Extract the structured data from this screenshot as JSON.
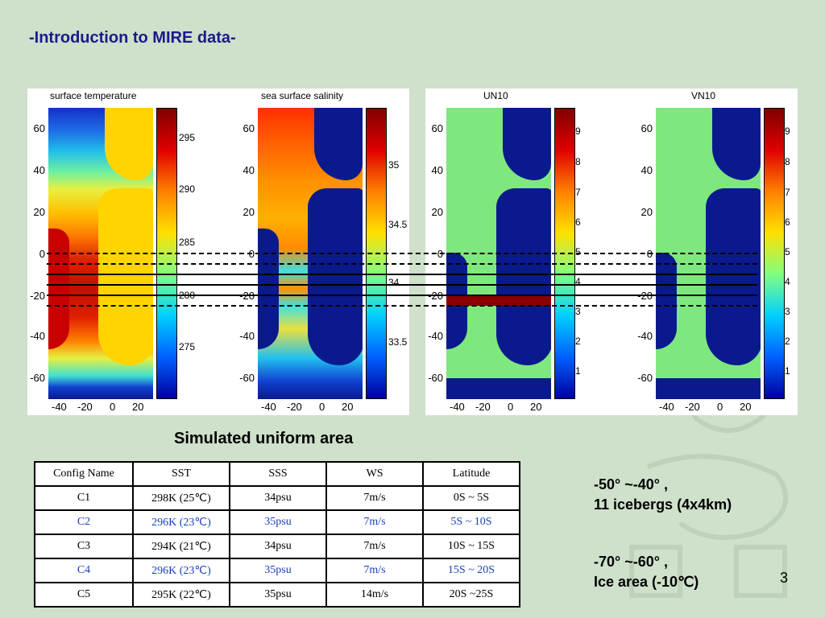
{
  "slide": {
    "title": "-Introduction to MIRE data-",
    "caption": "Simulated uniform area",
    "page_number": "3"
  },
  "panels": [
    {
      "title": "surface temperature",
      "cbar_ticks": [
        "295",
        "290",
        "285",
        "280",
        "275"
      ]
    },
    {
      "title": "sea surface salinity",
      "cbar_ticks": [
        "35",
        "34.5",
        "34",
        "33.5"
      ]
    },
    {
      "title": "UN10",
      "cbar_ticks": [
        "9",
        "8",
        "7",
        "6",
        "5",
        "4",
        "3",
        "2",
        "1"
      ]
    },
    {
      "title": "VN10",
      "cbar_ticks": [
        "9",
        "8",
        "7",
        "6",
        "5",
        "4",
        "3",
        "2",
        "1"
      ]
    }
  ],
  "lat_ticks": [
    "60",
    "40",
    "20",
    "0",
    "-20",
    "-40",
    "-60"
  ],
  "lon_ticks": [
    "-40",
    "-20",
    "0",
    "20"
  ],
  "table": {
    "headers": [
      "Config Name",
      "SST",
      "SSS",
      "WS",
      "Latitude"
    ],
    "rows": [
      [
        "C1",
        "298K (25℃)",
        "34psu",
        "7m/s",
        "0S ~ 5S"
      ],
      [
        "C2",
        "296K (23℃)",
        "35psu",
        "7m/s",
        "5S ~ 10S"
      ],
      [
        "C3",
        "294K (21℃)",
        "34psu",
        "7m/s",
        "10S ~ 15S"
      ],
      [
        "C4",
        "296K (23℃)",
        "35psu",
        "7m/s",
        "15S ~ 20S"
      ],
      [
        "C5",
        "295K (22℃)",
        "35psu",
        "14m/s",
        "20S ~25S"
      ]
    ]
  },
  "notes": {
    "line1": "-50° ~-40° ,",
    "line2": "11 icebergs (4x4km)",
    "line3": "-70° ~-60° ,",
    "line4": "Ice area (-10℃)"
  },
  "colors": {
    "title": "#1a1a8c",
    "alt_row": "#1a3fb5",
    "background": "#cfe0cb",
    "land_wind": "#7ee87e",
    "ocean_deep": "#0a1a8c"
  }
}
